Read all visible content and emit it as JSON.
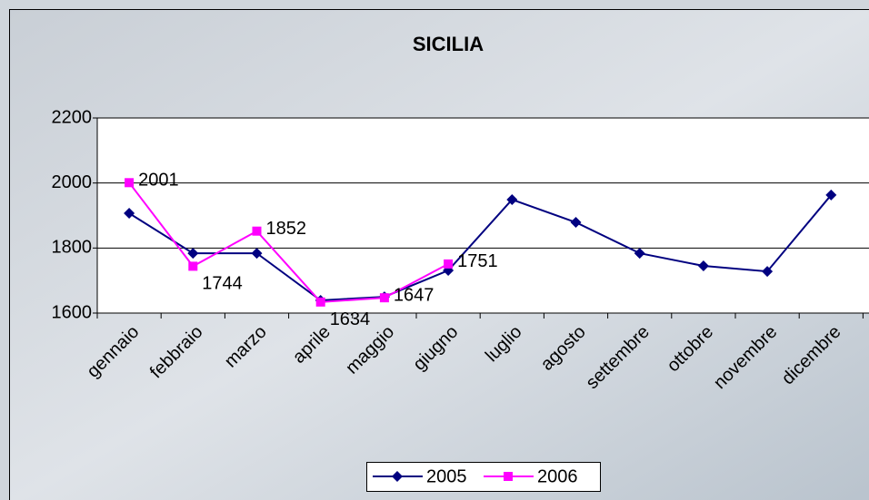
{
  "chart_data": {
    "type": "line",
    "title": "SICILIA",
    "categories": [
      "gennaio",
      "febbraio",
      "marzo",
      "aprile",
      "maggio",
      "giugno",
      "luglio",
      "agosto",
      "settembre",
      "ottobre",
      "novembre",
      "dicembre"
    ],
    "series": [
      {
        "name": "2005",
        "color": "#000080",
        "marker": "diamond",
        "labels": false,
        "values": [
          1907,
          1784,
          1784,
          1639,
          1650,
          1731,
          1949,
          1879,
          1784,
          1745,
          1728,
          1963
        ]
      },
      {
        "name": "2006",
        "color": "#ff00ff",
        "marker": "square",
        "labels": true,
        "values": [
          2001,
          1744,
          1852,
          1634,
          1647,
          1751,
          null,
          null,
          null,
          null,
          null,
          null
        ]
      }
    ],
    "ylim": [
      1600,
      2200
    ],
    "yticks": [
      1600,
      1800,
      2000,
      2200
    ],
    "grid": true,
    "legend": "bottom"
  }
}
